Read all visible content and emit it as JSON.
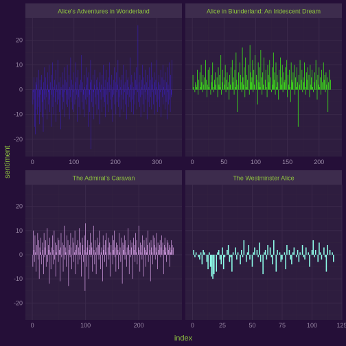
{
  "xlabel": "index",
  "ylabel": "sentiment",
  "ylim": [
    -27,
    29
  ],
  "yticks": [
    -20,
    -10,
    0,
    10,
    20
  ],
  "colors": {
    "background": "#250f38",
    "panel": "#2e1d3f",
    "strip": "#3d2c4d",
    "strip_text": "#8fc43f",
    "axis_text": "#8fc43f",
    "tick_label": "#9a8aa6",
    "grid_major": "#3c2b4c",
    "grid_minor": "#342340"
  },
  "chart_data": [
    {
      "type": "bar",
      "title": "Alice's Adventures in Wonderland",
      "color": "#3b1fc4",
      "n": 343,
      "xlim": [
        -17,
        360
      ],
      "xticks": [
        0,
        100,
        200,
        300
      ],
      "values": [
        -6,
        -1,
        -4,
        5,
        -15,
        0,
        -18,
        3,
        -8,
        2,
        5,
        -10,
        0,
        -7,
        8,
        -3,
        -14,
        4,
        -2,
        -9,
        1,
        6,
        -5,
        -11,
        0,
        -17,
        3,
        -4,
        9,
        -2,
        -8,
        5,
        0,
        -3,
        -12,
        2,
        7,
        -1,
        -6,
        10,
        -4,
        -9,
        3,
        0,
        -15,
        6,
        -2,
        11,
        -7,
        1,
        -3,
        -10,
        4,
        0,
        -5,
        8,
        -13,
        2,
        -1,
        -6,
        12,
        0,
        -4,
        3,
        -9,
        -2,
        5,
        -16,
        1,
        0,
        -3,
        7,
        -8,
        2,
        -5,
        9,
        -1,
        -11,
        4,
        0,
        -6,
        3,
        -2,
        10,
        -7,
        0,
        -4,
        6,
        -12,
        1,
        -3,
        13,
        -5,
        0,
        4,
        -8,
        2,
        -1,
        -9,
        7,
        0,
        -6,
        3,
        11,
        -4,
        -2,
        5,
        -13,
        0,
        8,
        -3,
        -7,
        2,
        0,
        -10,
        4,
        -1,
        14,
        -5,
        0,
        3,
        -8,
        -2,
        6,
        -11,
        1,
        0,
        -4,
        9,
        -6,
        2,
        -3,
        5,
        -15,
        0,
        7,
        -2,
        -9,
        3,
        12,
        -24,
        4,
        -5,
        0,
        -7,
        6,
        -1,
        -12,
        2,
        8,
        -3,
        0,
        -6,
        4,
        -10,
        1,
        5,
        -2,
        -8,
        0,
        3,
        -14,
        7,
        -1,
        -4,
        2,
        -9,
        6,
        0,
        -3,
        10,
        -7,
        1,
        -5,
        4,
        -11,
        0,
        8,
        -2,
        -6,
        3,
        0,
        -9,
        5,
        -1,
        11,
        -4,
        2,
        0,
        -8,
        6,
        -3,
        -13,
        1,
        4,
        -2,
        9,
        -6,
        0,
        3,
        -10,
        7,
        -1,
        -5,
        2,
        12,
        -7,
        0,
        -3,
        5,
        -11,
        1,
        4,
        -2,
        -8,
        6,
        0,
        -4,
        10,
        -9,
        2,
        -1,
        3,
        -6,
        0,
        8,
        -12,
        4,
        -2,
        5,
        -7,
        1,
        0,
        -3,
        13,
        -5,
        2,
        -9,
        6,
        0,
        -4,
        3,
        -10,
        1,
        7,
        -2,
        -6,
        4,
        0,
        9,
        -8,
        2,
        -1,
        26,
        -5,
        0,
        3,
        -7,
        6,
        -3,
        -11,
        1,
        4,
        -2,
        10,
        -6,
        0,
        5,
        -9,
        2,
        -1,
        8,
        -4,
        0,
        3,
        -12,
        6,
        -2,
        -5,
        1,
        9,
        -7,
        0,
        4,
        -3,
        11,
        -8,
        2,
        -1,
        5,
        -6,
        0,
        7,
        -10,
        3,
        -2,
        4,
        -5,
        1,
        12,
        -9,
        0,
        3,
        -4,
        6,
        -7,
        2,
        -1,
        8,
        -11,
        0,
        5,
        -3,
        10,
        -6,
        1,
        4,
        -2,
        -8,
        7,
        0,
        -5,
        3,
        -12,
        9,
        -1,
        2,
        -6,
        11,
        -4,
        0,
        -9,
        6,
        -3,
        -2,
        12
      ]
    },
    {
      "type": "bar",
      "title": "Alice in Blunderland: An Iridescent Dream",
      "color": "#3ee21a",
      "n": 224,
      "xlim": [
        -11,
        236
      ],
      "xticks": [
        0,
        50,
        100,
        150,
        200
      ],
      "values": [
        6,
        1,
        0,
        -1,
        3,
        2,
        1,
        8,
        -2,
        4,
        0,
        7,
        1,
        10,
        3,
        -1,
        6,
        2,
        5,
        0,
        12,
        4,
        -3,
        2,
        8,
        1,
        9,
        0,
        -2,
        6,
        3,
        11,
        1,
        -1,
        4,
        7,
        2,
        0,
        5,
        -3,
        9,
        2,
        6,
        1,
        14,
        -2,
        3,
        8,
        0,
        5,
        2,
        10,
        -1,
        4,
        7,
        1,
        3,
        -4,
        6,
        2,
        9,
        0,
        12,
        3,
        5,
        -2,
        8,
        1,
        15,
        4,
        -9,
        2,
        7,
        0,
        11,
        6,
        3,
        -1,
        17,
        5,
        2,
        9,
        -3,
        13,
        1,
        6,
        4,
        0,
        10,
        -2,
        18,
        7,
        3,
        5,
        12,
        -1,
        8,
        2,
        14,
        0,
        6,
        4,
        -6,
        11,
        3,
        9,
        1,
        16,
        5,
        -2,
        7,
        2,
        13,
        0,
        4,
        8,
        1,
        -3,
        10,
        6,
        3,
        12,
        0,
        5,
        -1,
        9,
        2,
        15,
        4,
        7,
        -2,
        11,
        1,
        6,
        3,
        -4,
        8,
        0,
        13,
        5,
        2,
        10,
        -1,
        7,
        3,
        4,
        9,
        0,
        12,
        -3,
        6,
        2,
        8,
        1,
        -5,
        11,
        4,
        3,
        7,
        0,
        10,
        -2,
        5,
        1,
        9,
        3,
        -15,
        6,
        2,
        12,
        0,
        4,
        8,
        -1,
        5,
        3,
        11,
        1,
        -2,
        7,
        4,
        9,
        0,
        6,
        -3,
        10,
        2,
        5,
        8,
        1,
        -1,
        3,
        7,
        0,
        12,
        4,
        -4,
        6,
        2,
        9,
        1,
        5,
        -2,
        8,
        3,
        0,
        11,
        4,
        6,
        -1,
        7,
        2,
        5,
        -9,
        3,
        8,
        0,
        4
      ]
    },
    {
      "type": "bar",
      "title": "The Admiral's Caravan",
      "color": "#d9a1e8",
      "n": 267,
      "xlim": [
        -13,
        281
      ],
      "xticks": [
        0,
        100,
        200
      ],
      "values": [
        -5,
        10,
        2,
        -3,
        8,
        1,
        -7,
        4,
        0,
        9,
        -2,
        6,
        -10,
        3,
        1,
        7,
        -4,
        0,
        5,
        2,
        -8,
        9,
        -1,
        3,
        6,
        -5,
        0,
        11,
        -3,
        4,
        2,
        -12,
        7,
        1,
        -6,
        3,
        0,
        8,
        -4,
        2,
        10,
        -2,
        5,
        -9,
        1,
        4,
        0,
        7,
        -3,
        6,
        2,
        -11,
        3,
        9,
        -1,
        5,
        0,
        -7,
        4,
        12,
        -2,
        3,
        1,
        -5,
        8,
        0,
        6,
        -13,
        2,
        4,
        -1,
        9,
        3,
        -6,
        0,
        7,
        5,
        -3,
        1,
        10,
        -8,
        2,
        4,
        0,
        6,
        -4,
        3,
        11,
        -2,
        1,
        5,
        -9,
        0,
        7,
        4,
        -3,
        2,
        8,
        -15,
        13,
        1,
        -5,
        3,
        6,
        0,
        -10,
        4,
        2,
        9,
        -1,
        5,
        3,
        -7,
        0,
        12,
        2,
        -4,
        6,
        1,
        -8,
        3,
        7,
        0,
        4,
        -2,
        10,
        5,
        -6,
        1,
        3,
        0,
        -11,
        8,
        2,
        4,
        -3,
        6,
        1,
        9,
        -5,
        0,
        3,
        7,
        -2,
        5,
        -9,
        1,
        4,
        0,
        8,
        -4,
        2,
        6,
        10,
        -1,
        3,
        -7,
        5,
        0,
        4,
        2,
        -6,
        9,
        1,
        3,
        -3,
        7,
        0,
        -12,
        5,
        2,
        4,
        8,
        -2,
        6,
        1,
        -5,
        3,
        0,
        11,
        4,
        -8,
        2,
        6,
        -1,
        3,
        5,
        0,
        -10,
        7,
        2,
        4,
        -3,
        9,
        1,
        6,
        -4,
        0,
        3,
        12,
        2,
        -7,
        5,
        1,
        4,
        -2,
        8,
        0,
        -9,
        6,
        3,
        2,
        -5,
        7,
        1,
        4,
        10,
        -3,
        0,
        5,
        2,
        -11,
        6,
        3,
        1,
        -4,
        8,
        0,
        4,
        7,
        -2,
        3,
        9,
        1,
        -6,
        5,
        2,
        0,
        4,
        6,
        -1,
        3,
        8,
        0,
        5,
        2,
        -8,
        4,
        7,
        1,
        3,
        -3,
        6,
        0,
        5,
        2,
        4,
        -5,
        3,
        1,
        6,
        2,
        4,
        0,
        3
      ]
    },
    {
      "type": "bar",
      "title": "The Westminster Alice",
      "color": "#8dfce8",
      "n": 118,
      "xlim": [
        -6,
        125
      ],
      "xticks": [
        0,
        25,
        50,
        75,
        100,
        125
      ],
      "values": [
        2,
        -1,
        1,
        0,
        -1,
        -2,
        1,
        -4,
        2,
        1,
        0,
        -3,
        -6,
        1,
        -5,
        -9,
        -10,
        -8,
        0,
        -7,
        1,
        2,
        -2,
        -4,
        3,
        -6,
        -1,
        0,
        2,
        4,
        -3,
        -1,
        -7,
        1,
        0,
        3,
        -2,
        1,
        0,
        -4,
        2,
        -1,
        6,
        0,
        -3,
        1,
        4,
        -2,
        0,
        -5,
        1,
        3,
        0,
        2,
        -1,
        5,
        -3,
        0,
        -8,
        1,
        2,
        -2,
        4,
        0,
        3,
        -1,
        -4,
        6,
        0,
        -7,
        2,
        0,
        1,
        -3,
        -2,
        0,
        1,
        -6,
        4,
        0,
        2,
        -2,
        -4,
        1,
        3,
        0,
        -1,
        2,
        -3,
        1,
        0,
        4,
        -1,
        -2,
        3,
        0,
        1,
        -5,
        0,
        2,
        6,
        -1,
        2,
        0,
        -3,
        5,
        1,
        -2,
        0,
        3,
        -1,
        -7,
        4,
        0,
        2,
        0,
        1,
        -3
      ]
    }
  ]
}
